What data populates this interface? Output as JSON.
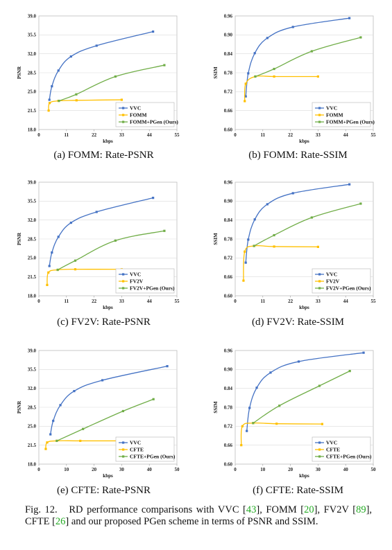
{
  "colors": {
    "vvc": "#4472C4",
    "base": "#FFC000",
    "pgen": "#70AD47"
  },
  "panels": [
    {
      "subcaption": "(a) FOMM: Rate-PSNR",
      "chart_data": {
        "type": "line",
        "xlabel": "kbps",
        "ylabel": "PSNR",
        "xlim": [
          0,
          55
        ],
        "xticks": [
          0,
          11,
          22,
          33,
          44,
          55
        ],
        "ylim": [
          18.0,
          39.0
        ],
        "yticks": [
          "18.0",
          "21.5",
          "25.0",
          "28.5",
          "32.0",
          "35.5",
          "39.0"
        ],
        "legend_position": "bottom-right",
        "series": [
          {
            "name": "VVC",
            "x": [
              4.2,
              5.2,
              7.8,
              12.8,
              23.0,
              45.5
            ],
            "y": [
              23.5,
              26.0,
              28.9,
              31.5,
              33.5,
              36.1
            ]
          },
          {
            "name": "FOMM",
            "x": [
              3.9,
              4.3,
              7.8,
              15.0,
              33.0
            ],
            "y": [
              21.5,
              22.9,
              23.3,
              23.4,
              23.5
            ]
          },
          {
            "name": "FOMM+PGen (Ours)",
            "x": [
              8.0,
              14.9,
              30.5,
              50.0
            ],
            "y": [
              23.3,
              24.5,
              27.8,
              29.9
            ]
          }
        ]
      }
    },
    {
      "subcaption": "(b) FOMM: Rate-SSIM",
      "chart_data": {
        "type": "line",
        "xlabel": "kbps",
        "ylabel": "SSIM",
        "xlim": [
          0,
          55
        ],
        "xticks": [
          0,
          11,
          22,
          33,
          44,
          55
        ],
        "ylim": [
          0.6,
          0.96
        ],
        "yticks": [
          "0.60",
          "0.66",
          "0.72",
          "0.78",
          "0.84",
          "0.90",
          "0.96"
        ],
        "legend_position": "bottom-right",
        "series": [
          {
            "name": "VVC",
            "x": [
              4.2,
              5.2,
              7.8,
              12.8,
              23.0,
              45.5
            ],
            "y": [
              0.705,
              0.778,
              0.842,
              0.89,
              0.925,
              0.953
            ]
          },
          {
            "name": "FOMM",
            "x": [
              3.8,
              4.2,
              8.0,
              15.5,
              33.0
            ],
            "y": [
              0.69,
              0.745,
              0.768,
              0.768,
              0.768
            ]
          },
          {
            "name": "FOMM+PGen (Ours)",
            "x": [
              8.0,
              15.5,
              30.5,
              50.0
            ],
            "y": [
              0.768,
              0.792,
              0.848,
              0.892
            ]
          }
        ]
      }
    },
    {
      "subcaption": "(c) FV2V: Rate-PSNR",
      "chart_data": {
        "type": "line",
        "xlabel": "kbps",
        "ylabel": "PSNR",
        "xlim": [
          0,
          55
        ],
        "xticks": [
          0,
          11,
          22,
          33,
          44,
          55
        ],
        "ylim": [
          18.0,
          39.0
        ],
        "yticks": [
          "18.0",
          "21.5",
          "25.0",
          "28.5",
          "32.0",
          "35.5",
          "39.0"
        ],
        "legend_position": "bottom-right",
        "series": [
          {
            "name": "VVC",
            "x": [
              4.2,
              5.2,
              7.8,
              12.8,
              23.0,
              45.5
            ],
            "y": [
              23.5,
              26.0,
              28.9,
              31.5,
              33.5,
              36.1
            ]
          },
          {
            "name": "FV2V",
            "x": [
              3.3,
              3.8,
              7.5,
              14.5,
              33.0
            ],
            "y": [
              20.0,
              22.3,
              22.8,
              22.9,
              22.9
            ]
          },
          {
            "name": "FV2V+PGen (Ours)",
            "x": [
              7.5,
              14.5,
              30.5,
              50.0
            ],
            "y": [
              22.8,
              24.5,
              28.2,
              30.0
            ]
          }
        ]
      }
    },
    {
      "subcaption": "(d) FV2V: Rate-SSIM",
      "chart_data": {
        "type": "line",
        "xlabel": "kbps",
        "ylabel": "SSIM",
        "xlim": [
          0,
          55
        ],
        "xticks": [
          0,
          11,
          22,
          33,
          44,
          55
        ],
        "ylim": [
          0.6,
          0.96
        ],
        "yticks": [
          "0.60",
          "0.66",
          "0.72",
          "0.78",
          "0.84",
          "0.90",
          "0.96"
        ],
        "legend_position": "bottom-right",
        "series": [
          {
            "name": "VVC",
            "x": [
              4.2,
              5.2,
              7.8,
              12.8,
              23.0,
              45.5
            ],
            "y": [
              0.705,
              0.778,
              0.842,
              0.89,
              0.925,
              0.953
            ]
          },
          {
            "name": "FV2V",
            "x": [
              3.3,
              3.8,
              7.5,
              15.5,
              33.0
            ],
            "y": [
              0.648,
              0.74,
              0.758,
              0.756,
              0.755
            ]
          },
          {
            "name": "FV2V+PGen (Ours)",
            "x": [
              7.5,
              15.5,
              30.5,
              50.0
            ],
            "y": [
              0.758,
              0.792,
              0.848,
              0.892
            ]
          }
        ]
      }
    },
    {
      "subcaption": "(e) CFTE: Rate-PSNR",
      "chart_data": {
        "type": "line",
        "xlabel": "kbps",
        "ylabel": "PSNR",
        "xlim": [
          0,
          50
        ],
        "xticks": [
          0,
          10,
          20,
          30,
          40,
          50
        ],
        "ylim": [
          18.0,
          39.0
        ],
        "yticks": [
          "18.0",
          "21.5",
          "25.0",
          "28.5",
          "32.0",
          "35.5",
          "39.0"
        ],
        "legend_position": "bottom-right",
        "series": [
          {
            "name": "VVC",
            "x": [
              4.2,
              5.2,
              7.8,
              12.8,
              23.0,
              46.5
            ],
            "y": [
              23.5,
              26.0,
              28.9,
              31.5,
              33.5,
              36.1
            ]
          },
          {
            "name": "CFTE",
            "x": [
              2.5,
              3.0,
              6.5,
              15.0,
              31.5
            ],
            "y": [
              20.8,
              22.0,
              22.3,
              22.3,
              22.3
            ]
          },
          {
            "name": "CFTE+PGen (Ours)",
            "x": [
              6.5,
              16.0,
              30.5,
              41.5
            ],
            "y": [
              22.3,
              24.5,
              27.8,
              30.0
            ]
          }
        ]
      }
    },
    {
      "subcaption": "(f) CFTE: Rate-SSIM",
      "chart_data": {
        "type": "line",
        "xlabel": "kbps",
        "ylabel": "SSIM",
        "xlim": [
          0,
          50
        ],
        "xticks": [
          0,
          10,
          20,
          30,
          40,
          50
        ],
        "ylim": [
          0.6,
          0.96
        ],
        "yticks": [
          "0.60",
          "0.66",
          "0.72",
          "0.78",
          "0.84",
          "0.90",
          "0.96"
        ],
        "legend_position": "bottom-right",
        "series": [
          {
            "name": "VVC",
            "x": [
              4.2,
              5.2,
              7.8,
              12.8,
              23.0,
              46.5
            ],
            "y": [
              0.705,
              0.778,
              0.842,
              0.89,
              0.925,
              0.953
            ]
          },
          {
            "name": "CFTE",
            "x": [
              2.2,
              2.6,
              6.5,
              15.0,
              31.5
            ],
            "y": [
              0.66,
              0.72,
              0.73,
              0.728,
              0.727
            ]
          },
          {
            "name": "CFTE+PGen (Ours)",
            "x": [
              6.5,
              16.0,
              30.5,
              41.5
            ],
            "y": [
              0.73,
              0.785,
              0.848,
              0.895
            ]
          }
        ]
      }
    }
  ],
  "caption": {
    "label": "Fig. 12.",
    "text_1": "RD performance comparisons with VVC [",
    "ref_1": "43",
    "text_2": "], FOMM [",
    "ref_2": "20",
    "text_3": "], FV2V [",
    "ref_3": "89",
    "text_4": "], CFTE [",
    "ref_4": "26",
    "text_5": "] and our proposed PGen scheme in terms of PSNR and SSIM."
  }
}
